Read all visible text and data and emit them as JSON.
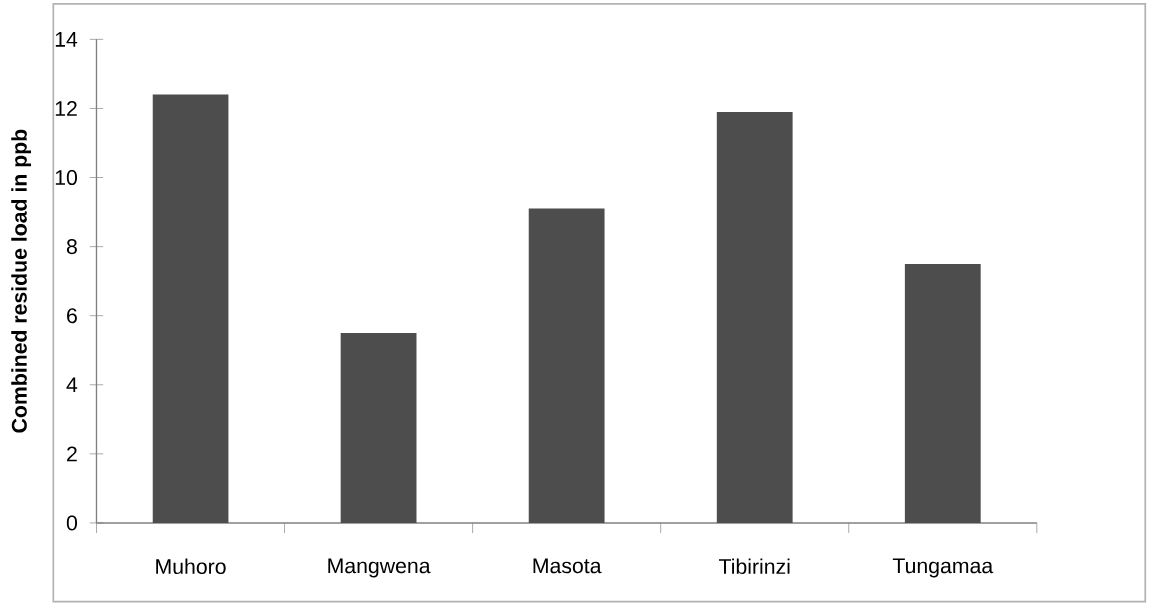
{
  "chart_data": {
    "type": "bar",
    "ylabel": "**Combined residue load in ppb**",
    "categories": [
      "Muhoro",
      "Mangwena",
      "Masota",
      "Tibirinzi",
      "Tungamaa"
    ],
    "values": [
      12.4,
      5.5,
      9.1,
      11.9,
      7.5
    ],
    "color": "#4d4d4d",
    "ylim": [
      0,
      14
    ],
    "yticks": [
      0,
      2,
      4,
      6,
      8,
      10,
      12,
      14
    ],
    "grid": false
  }
}
